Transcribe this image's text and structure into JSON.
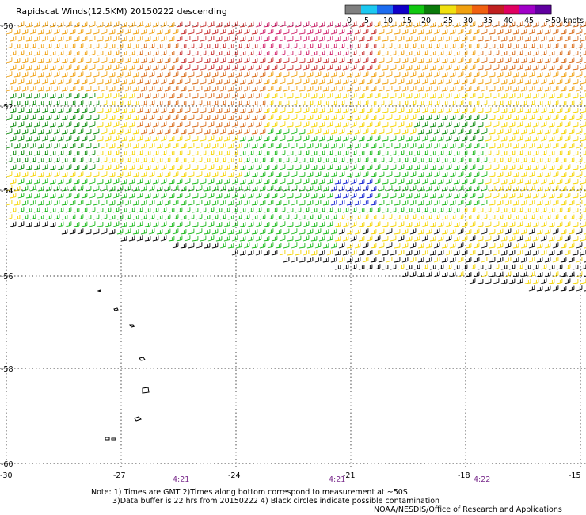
{
  "title": "Rapidscat Winds(12.5KM) 20150222 descending",
  "legend": {
    "labels": [
      "0",
      "5",
      "10",
      "15",
      "20",
      "25",
      "30",
      "35",
      "40",
      "45",
      ">50 knots"
    ],
    "colors": [
      "#7f7f7f",
      "#1cc8f0",
      "#1c6cf0",
      "#1000c8",
      "#10c810",
      "#0a7a0a",
      "#f0e010",
      "#f0a010",
      "#f06010",
      "#c02020",
      "#e00060",
      "#a000c8",
      "#6000a0"
    ]
  },
  "axes": {
    "lat_labels": [
      "-50",
      "-52",
      "-54",
      "-56",
      "-58",
      "-60"
    ],
    "lon_labels": [
      "-30",
      "-27",
      "-24",
      "-21",
      "-18",
      "-15"
    ]
  },
  "times": [
    "4:21",
    "4:21",
    "4:22"
  ],
  "notes": {
    "line1": "Note: 1) Times are GMT 2)Times along bottom correspond to measurement at ~50S",
    "line2": "3)Data buffer is 22 hrs from 20150222 4) Black circles indicate possible contamination"
  },
  "credit": "NOAA/NESDIS/Office of Research and Applications",
  "colors": {
    "yellow": "#f5d400",
    "orange": "#f0a010",
    "dark_orange": "#d86a18",
    "red": "#c83030",
    "magenta": "#d0206a",
    "green": "#18b818",
    "dark_green": "#0a8a0a",
    "blue": "#1020d0",
    "black": "#000000",
    "grid": "#000000",
    "time_color": "#7a2c8c"
  }
}
